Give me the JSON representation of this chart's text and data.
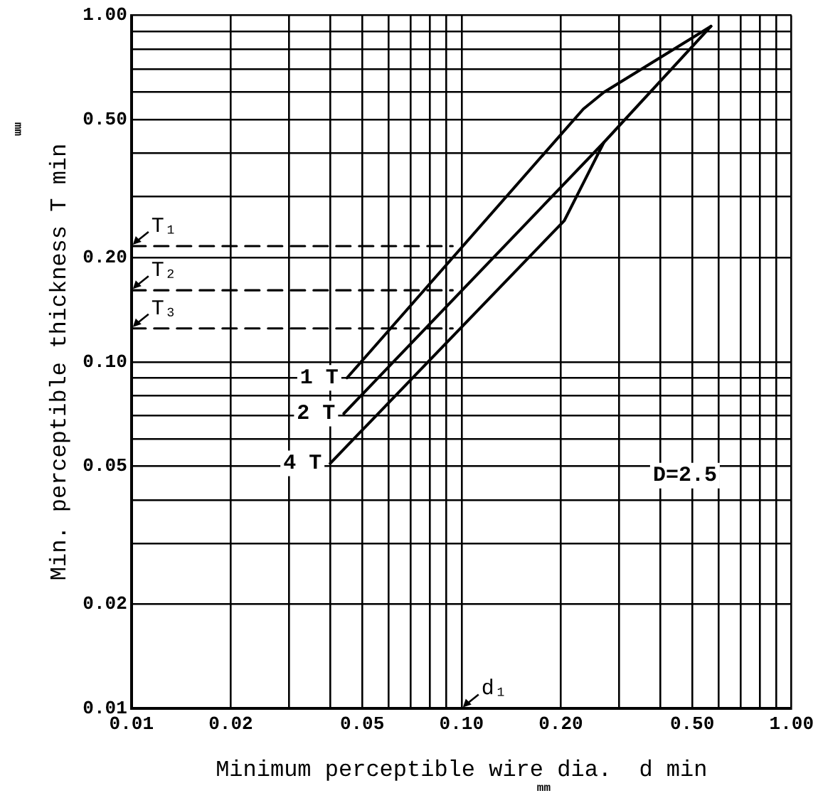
{
  "chart_data": {
    "type": "line",
    "xlabel": "Minimum perceptible wire dia.  d min",
    "ylabel": "Min. perceptible thickness T min",
    "log": "xy",
    "grid": true,
    "marker": "none",
    "line_style": "solid",
    "legend": false,
    "xlim": [
      0.01,
      1
    ],
    "ylim": [
      0.01,
      1
    ],
    "xticks": [
      {
        "value": 0.01,
        "label": "0.01"
      },
      {
        "value": 0.02,
        "label": "0.02"
      },
      {
        "value": 0.03,
        "label": null
      },
      {
        "value": 0.04,
        "label": null
      },
      {
        "value": 0.05,
        "label": "0.05"
      },
      {
        "value": 0.06,
        "label": null
      },
      {
        "value": 0.07,
        "label": null
      },
      {
        "value": 0.08,
        "label": null
      },
      {
        "value": 0.09,
        "label": null
      },
      {
        "value": 0.1,
        "label": "0.10"
      },
      {
        "value": 0.2,
        "label": "0.20"
      },
      {
        "value": 0.3,
        "label": null
      },
      {
        "value": 0.4,
        "label": null
      },
      {
        "value": 0.5,
        "label": "0.50"
      },
      {
        "value": 0.6,
        "label": null
      },
      {
        "value": 0.7,
        "label": null
      },
      {
        "value": 0.8,
        "label": null
      },
      {
        "value": 0.9,
        "label": null
      },
      {
        "value": 1,
        "label": "1.00"
      }
    ],
    "yticks": [
      {
        "value": 0.01,
        "label": "0.01"
      },
      {
        "value": 0.02,
        "label": "0.02"
      },
      {
        "value": 0.03,
        "label": null
      },
      {
        "value": 0.04,
        "label": null
      },
      {
        "value": 0.05,
        "label": "0.05"
      },
      {
        "value": 0.06,
        "label": null
      },
      {
        "value": 0.07,
        "label": null
      },
      {
        "value": 0.08,
        "label": null
      },
      {
        "value": 0.09,
        "label": null
      },
      {
        "value": 0.1,
        "label": "0.10"
      },
      {
        "value": 0.2,
        "label": "0.20"
      },
      {
        "value": 0.3,
        "label": null
      },
      {
        "value": 0.4,
        "label": null
      },
      {
        "value": 0.5,
        "label": "0.50"
      },
      {
        "value": 0.6,
        "label": null
      },
      {
        "value": 0.7,
        "label": null
      },
      {
        "value": 0.8,
        "label": null
      },
      {
        "value": 0.9,
        "label": null
      },
      {
        "value": 1,
        "label": "1.00"
      }
    ],
    "series": [
      {
        "name": "1 T",
        "color": "#000000",
        "x": [
          0.045,
          0.234,
          0.27,
          0.57
        ],
        "values": [
          0.09,
          0.537,
          0.6,
          0.93
        ]
      },
      {
        "name": "2 T",
        "color": "#000000",
        "x": [
          0.044,
          0.27,
          0.57
        ],
        "values": [
          0.071,
          0.43,
          0.93
        ]
      },
      {
        "name": "4 T",
        "color": "#000000",
        "x": [
          0.04,
          0.205,
          0.27
        ],
        "values": [
          0.051,
          0.256,
          0.43
        ]
      },
      {
        "color": "#000000",
        "line_style": "dashed",
        "x": [
          0.01,
          0.094
        ],
        "values": [
          0.216,
          0.216
        ]
      },
      {
        "color": "#000000",
        "line_style": "dashed",
        "x": [
          0.01,
          0.094
        ],
        "values": [
          0.161,
          0.161
        ]
      },
      {
        "color": "#000000",
        "line_style": "dashed",
        "x": [
          0.01,
          0.094
        ],
        "values": [
          0.125,
          0.125
        ]
      }
    ],
    "annotations": [
      "D=2.5",
      "mm",
      "mm",
      "T₁",
      "T₂",
      "T₃",
      "d₁"
    ]
  }
}
